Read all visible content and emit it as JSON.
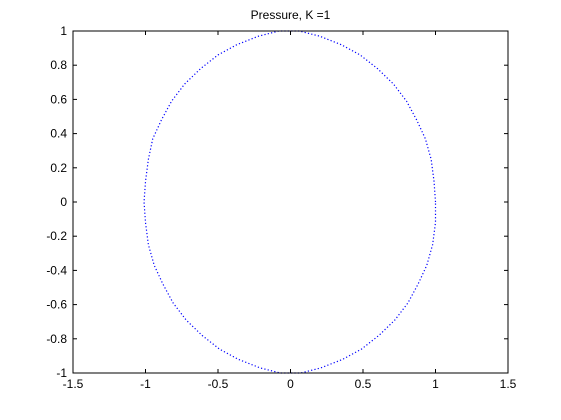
{
  "chart_data": {
    "type": "line",
    "title": "Pressure, K =1",
    "xlabel": "",
    "ylabel": "",
    "xlim": [
      -1.5,
      1.5
    ],
    "ylim": [
      -1,
      1
    ],
    "xticks": [
      "-1.5",
      "-1",
      "-0.5",
      "0",
      "0.5",
      "1",
      "1.5"
    ],
    "yticks": [
      "-1",
      "-0.8",
      "-0.6",
      "-0.4",
      "-0.2",
      "0",
      "0.2",
      "0.4",
      "0.6",
      "0.8",
      "1"
    ],
    "grid": false,
    "line_style": "dotted",
    "series": [
      {
        "color": "#0000ff",
        "points": [
          [
            1.0,
            0.0
          ],
          [
            0.99,
            0.12
          ],
          [
            0.97,
            0.25
          ],
          [
            0.93,
            0.37
          ],
          [
            0.87,
            0.48
          ],
          [
            0.8,
            0.59
          ],
          [
            0.71,
            0.69
          ],
          [
            0.6,
            0.78
          ],
          [
            0.48,
            0.86
          ],
          [
            0.35,
            0.92
          ],
          [
            0.2,
            0.97
          ],
          [
            0.06,
            1.0
          ],
          [
            -0.08,
            1.0
          ],
          [
            -0.22,
            0.97
          ],
          [
            -0.37,
            0.92
          ],
          [
            -0.5,
            0.86
          ],
          [
            -0.62,
            0.78
          ],
          [
            -0.73,
            0.69
          ],
          [
            -0.82,
            0.59
          ],
          [
            -0.89,
            0.48
          ],
          [
            -0.95,
            0.37
          ],
          [
            -0.98,
            0.25
          ],
          [
            -1.0,
            0.12
          ],
          [
            -1.01,
            0.0
          ],
          [
            -1.0,
            -0.12
          ],
          [
            -0.98,
            -0.25
          ],
          [
            -0.94,
            -0.37
          ],
          [
            -0.88,
            -0.48
          ],
          [
            -0.81,
            -0.59
          ],
          [
            -0.72,
            -0.69
          ],
          [
            -0.61,
            -0.78
          ],
          [
            -0.49,
            -0.86
          ],
          [
            -0.36,
            -0.92
          ],
          [
            -0.21,
            -0.97
          ],
          [
            -0.07,
            -1.0
          ],
          [
            0.07,
            -1.0
          ],
          [
            0.21,
            -0.97
          ],
          [
            0.36,
            -0.92
          ],
          [
            0.49,
            -0.86
          ],
          [
            0.61,
            -0.78
          ],
          [
            0.72,
            -0.69
          ],
          [
            0.81,
            -0.59
          ],
          [
            0.88,
            -0.48
          ],
          [
            0.94,
            -0.37
          ],
          [
            0.98,
            -0.25
          ],
          [
            1.0,
            -0.12
          ],
          [
            1.0,
            0.0
          ]
        ]
      }
    ]
  }
}
